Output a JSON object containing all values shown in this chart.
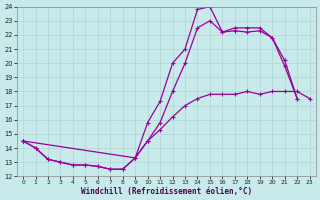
{
  "xlabel": "Windchill (Refroidissement éolien,°C)",
  "bg_color": "#c8eaea",
  "line_color": "#990099",
  "grid_color": "#b0d4d4",
  "xlim": [
    -0.5,
    23.5
  ],
  "ylim": [
    12,
    24
  ],
  "xticks": [
    0,
    1,
    2,
    3,
    4,
    5,
    6,
    7,
    8,
    9,
    10,
    11,
    12,
    13,
    14,
    15,
    16,
    17,
    18,
    19,
    20,
    21,
    22,
    23
  ],
  "yticks": [
    12,
    13,
    14,
    15,
    16,
    17,
    18,
    19,
    20,
    21,
    22,
    23,
    24
  ],
  "line1_x": [
    0,
    1,
    2,
    3,
    4,
    5,
    6,
    7,
    8,
    9,
    10,
    11,
    12,
    13,
    14,
    15,
    16,
    17,
    18,
    19,
    20,
    21,
    22
  ],
  "line1_y": [
    14.5,
    14.0,
    13.2,
    13.0,
    12.8,
    12.8,
    12.7,
    12.5,
    12.5,
    13.3,
    15.8,
    17.3,
    20.0,
    21.0,
    23.8,
    24.0,
    22.2,
    22.5,
    22.5,
    22.5,
    21.8,
    20.2,
    17.5
  ],
  "line2_x": [
    0,
    1,
    2,
    3,
    4,
    5,
    6,
    7,
    8,
    9,
    10,
    11,
    12,
    13,
    14,
    15,
    16,
    17,
    18,
    19,
    20,
    21,
    22,
    23
  ],
  "line2_y": [
    14.5,
    14.0,
    13.2,
    13.0,
    12.8,
    12.8,
    12.7,
    12.5,
    12.5,
    13.3,
    14.5,
    15.3,
    16.2,
    17.0,
    17.5,
    17.8,
    17.8,
    17.8,
    18.0,
    17.8,
    18.0,
    18.0,
    18.0,
    17.5
  ],
  "line3_x": [
    0,
    9,
    10,
    11,
    12,
    13,
    14,
    15,
    16,
    17,
    18,
    19,
    20,
    21,
    22,
    23
  ],
  "line3_y": [
    14.5,
    13.3,
    14.5,
    15.8,
    18.0,
    20.0,
    22.5,
    23.0,
    22.2,
    22.3,
    22.2,
    22.3,
    21.8,
    19.8,
    17.5,
    null
  ]
}
